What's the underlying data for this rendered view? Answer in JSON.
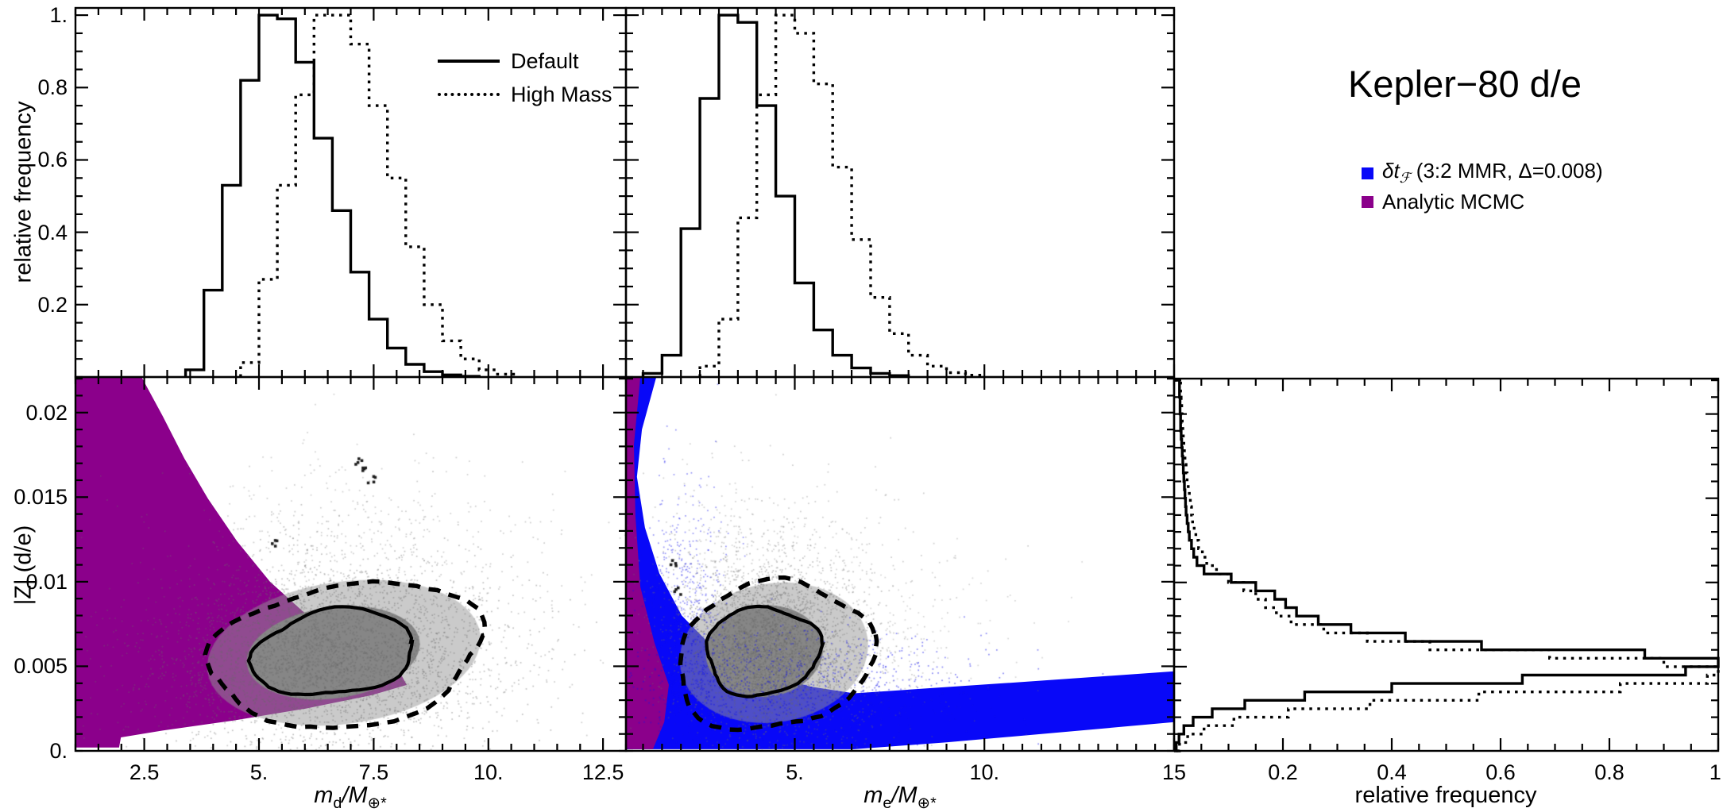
{
  "title": "Kepler−80 d/e",
  "colors": {
    "blue": "#0808F8",
    "purple": "#8B008B",
    "gray_core": "#868686",
    "gray_mid": "#969696",
    "frame": "#000000"
  },
  "line_legend": {
    "default_label": "Default",
    "high_mass_label": "High Mass"
  },
  "region_legend": {
    "item1": {
      "prefix": "δt",
      "sub": "ℱ",
      "rest": " (3:2 MMR, Δ=0.008)",
      "color": "#0808F8"
    },
    "item2": {
      "label": "Analytic MCMC",
      "color": "#8B008B"
    }
  },
  "axis_labels": {
    "top_y": "relative frequency",
    "bottom_y": "|Z| (d/e)",
    "bottom_right_x": "relative frequency",
    "md": {
      "base": "m",
      "sub": "d",
      "mid": "/M",
      "sub2": "⊕*"
    },
    "me": {
      "base": "m",
      "sub": "e",
      "mid": "/M",
      "sub2": "⊕*"
    }
  },
  "chart_data": [
    {
      "id": "md_hist",
      "type": "histogram-step",
      "orientation": "vertical",
      "xlabel": "m_d/M_earth*",
      "ylabel": "relative frequency",
      "xlim": [
        1,
        13
      ],
      "ylim": [
        0,
        1.02
      ],
      "x_minor_step": 0.5,
      "x_major_ticks": [
        2.5,
        5,
        7.5,
        10,
        12.5
      ],
      "y_minor_step": 0.05,
      "y_major_ticks": [
        0.2,
        0.4,
        0.6,
        0.8,
        1
      ],
      "y_tick_labels": [
        "0.2",
        "0.4",
        "0.6",
        "0.8",
        "1."
      ],
      "series": [
        {
          "name": "Default",
          "style": "solid",
          "bin_start": 3.4,
          "bin_width": 0.4,
          "values": [
            0.02,
            0.24,
            0.53,
            0.82,
            1.0,
            0.99,
            0.87,
            0.66,
            0.46,
            0.29,
            0.16,
            0.08,
            0.035,
            0.015,
            0.006,
            0.002
          ]
        },
        {
          "name": "High Mass",
          "style": "dotted",
          "bin_start": 4.6,
          "bin_width": 0.4,
          "values": [
            0.04,
            0.27,
            0.53,
            0.78,
            1.0,
            1.0,
            0.92,
            0.75,
            0.55,
            0.36,
            0.2,
            0.1,
            0.05,
            0.02,
            0.008
          ]
        }
      ]
    },
    {
      "id": "me_hist",
      "type": "histogram-step",
      "orientation": "vertical",
      "xlabel": "m_e/M_earth*",
      "xlim": [
        0.55,
        15
      ],
      "ylim": [
        0,
        1.02
      ],
      "x_minor_step": 0.5,
      "x_major_ticks": [
        5,
        10,
        15
      ],
      "y_minor_step": 0.05,
      "y_major_ticks": [
        0.2,
        0.4,
        0.6,
        0.8,
        1
      ],
      "series": [
        {
          "name": "Default",
          "style": "solid",
          "bin_start": 1.0,
          "bin_width": 0.5,
          "values": [
            0.01,
            0.06,
            0.41,
            0.77,
            1.0,
            0.98,
            0.75,
            0.5,
            0.26,
            0.13,
            0.06,
            0.025,
            0.01,
            0.004
          ]
        },
        {
          "name": "High Mass",
          "style": "dotted",
          "bin_start": 2.5,
          "bin_width": 0.5,
          "values": [
            0.03,
            0.16,
            0.44,
            0.78,
            1.0,
            0.95,
            0.81,
            0.58,
            0.38,
            0.22,
            0.12,
            0.06,
            0.03,
            0.012,
            0.005
          ]
        }
      ]
    },
    {
      "id": "md_scatter",
      "type": "scatter",
      "xlabel": "m_d/M_earth*",
      "ylabel": "|Z| (d/e)",
      "xlim": [
        1,
        13
      ],
      "ylim": [
        0,
        0.0221
      ],
      "x_minor_step": 0.5,
      "x_major_ticks": [
        2.5,
        5,
        7.5,
        10,
        12.5
      ],
      "x_tick_labels": [
        "2.5",
        "5.",
        "7.5",
        "10.",
        "12.5"
      ],
      "y_minor_step": 0.001,
      "y_major_ticks": [
        0.005,
        0.01,
        0.015,
        0.02
      ],
      "y_tick_labels": [
        "0.005",
        "0.01",
        "0.015",
        "0.02"
      ],
      "y_zero_label": "0.",
      "regions": [
        {
          "name": "Analytic MCMC",
          "color": "#8B008B",
          "polygon": [
            [
              1,
              0.0221
            ],
            [
              2.44,
              0.0221
            ],
            [
              2.9,
              0.0198
            ],
            [
              3.37,
              0.0173
            ],
            [
              3.89,
              0.0149
            ],
            [
              4.52,
              0.0124
            ],
            [
              5.24,
              0.01
            ],
            [
              6.14,
              0.0078
            ],
            [
              7.11,
              0.006
            ],
            [
              8.1,
              0.0045
            ],
            [
              8.22,
              0.0039
            ],
            [
              7.46,
              0.0033
            ],
            [
              6.02,
              0.0025
            ],
            [
              4.46,
              0.0018
            ],
            [
              2.9,
              0.0012
            ],
            [
              1.99,
              0.0008
            ],
            [
              1.95,
              0.0002
            ],
            [
              1,
              0.0002
            ]
          ]
        }
      ],
      "contours": {
        "solid": {
          "cx": 6.62,
          "cy": 0.0058,
          "rx": 1.78,
          "ry": 0.0025,
          "rot": -8
        },
        "dashed": {
          "cx": 6.92,
          "cy": 0.0057,
          "rx": 2.98,
          "ry": 0.0042,
          "rot": -8
        }
      },
      "cloud": {
        "fills": [
          {
            "cx": 6.85,
            "cy": 0.0058,
            "rx": 3.0,
            "ry": 0.0042,
            "rot": -8,
            "fill": "rgba(150,150,150,0.5)"
          },
          {
            "cx": 6.62,
            "cy": 0.0058,
            "rx": 1.9,
            "ry": 0.0027,
            "rot": -8,
            "fill": "rgba(134,134,134,1)"
          }
        ],
        "speckles": [
          {
            "cx": 6.7,
            "cy": 0.0058,
            "sx": 1.75,
            "sy": 0.0026,
            "n": 2800,
            "color": "rgba(105,105,105,0.42)"
          },
          {
            "cx": 6.9,
            "cy": 0.0078,
            "sx": 2.5,
            "sy": 0.0038,
            "n": 900,
            "color": "rgba(110,110,110,0.35)"
          },
          {
            "cx": 6.6,
            "cy": 0.0125,
            "sx": 1.7,
            "sy": 0.003,
            "n": 230,
            "color": "rgba(120,120,120,0.35)"
          },
          {
            "cx": 4.5,
            "cy": 0.004,
            "sx": 1.6,
            "sy": 0.002,
            "n": 350,
            "color": "rgba(110,110,110,0.35)"
          }
        ],
        "accent_dots": [
          [
            7.25,
            0.0167
          ],
          [
            7.42,
            0.0161
          ],
          [
            7.15,
            0.0172
          ],
          [
            5.3,
            0.0124
          ]
        ]
      }
    },
    {
      "id": "me_scatter",
      "type": "scatter",
      "xlabel": "m_e/M_earth*",
      "xlim": [
        0.55,
        15
      ],
      "ylim": [
        0,
        0.0221
      ],
      "x_minor_step": 0.5,
      "x_major_ticks": [
        5,
        10,
        15
      ],
      "x_tick_labels": [
        "5.",
        "10.",
        "15"
      ],
      "y_minor_step": 0.001,
      "y_major_ticks": [
        0.005,
        0.01,
        0.015,
        0.02
      ],
      "regions": [
        {
          "name": "delta-t-F (3:2 MMR)",
          "color": "#0808F8",
          "polygon": [
            [
              0.55,
              0.0221
            ],
            [
              1.35,
              0.0221
            ],
            [
              0.97,
              0.019
            ],
            [
              0.84,
              0.0162
            ],
            [
              1.05,
              0.0132
            ],
            [
              1.43,
              0.0105
            ],
            [
              2.02,
              0.008
            ],
            [
              2.85,
              0.0061
            ],
            [
              3.94,
              0.0047
            ],
            [
              5.41,
              0.0038
            ],
            [
              6.56,
              0.0034
            ],
            [
              10.5,
              0.004
            ],
            [
              15,
              0.0047
            ],
            [
              15,
              0.0017
            ],
            [
              12,
              0.0011
            ],
            [
              9,
              0.0005
            ],
            [
              6.56,
              0.0001
            ],
            [
              0.55,
              0.0001
            ]
          ]
        },
        {
          "name": "Analytic MCMC",
          "color": "#8B008B",
          "polygon": [
            [
              0.55,
              0.0221
            ],
            [
              0.93,
              0.0221
            ],
            [
              0.76,
              0.0181
            ],
            [
              0.8,
              0.0139
            ],
            [
              0.93,
              0.0097
            ],
            [
              1.3,
              0.0064
            ],
            [
              1.68,
              0.0039
            ],
            [
              1.56,
              0.0017
            ],
            [
              1.26,
              0.0001
            ],
            [
              0.55,
              0.0001
            ]
          ]
        }
      ],
      "contours": {
        "solid": {
          "cx": 4.15,
          "cy": 0.0059,
          "rx": 1.5,
          "ry": 0.0026,
          "rot": -6
        },
        "dashed": {
          "cx": 4.45,
          "cy": 0.0056,
          "rx": 2.6,
          "ry": 0.0043,
          "rot": -12
        }
      },
      "cloud": {
        "fills": [
          {
            "cx": 4.45,
            "cy": 0.0058,
            "rx": 2.5,
            "ry": 0.0041,
            "rot": -10,
            "fill": "rgba(150,150,150,0.5)"
          },
          {
            "cx": 4.2,
            "cy": 0.0059,
            "rx": 1.55,
            "ry": 0.0027,
            "rot": -6,
            "fill": "rgba(134,134,134,1)"
          }
        ],
        "speckles": [
          {
            "cx": 4.3,
            "cy": 0.006,
            "sx": 1.1,
            "sy": 0.0024,
            "n": 2600,
            "color": "rgba(105,105,105,0.42)"
          },
          {
            "cx": 4.8,
            "cy": 0.008,
            "sx": 1.9,
            "sy": 0.0036,
            "n": 900,
            "color": "rgba(110,110,110,0.35)"
          },
          {
            "cx": 6.5,
            "cy": 0.0068,
            "sx": 2.2,
            "sy": 0.0022,
            "n": 250,
            "color": "rgba(120,120,120,0.3)"
          },
          {
            "cx": 3.6,
            "cy": 0.0115,
            "sx": 1.0,
            "sy": 0.0028,
            "n": 220,
            "color": "rgba(120,120,120,0.35)"
          },
          {
            "cx": 5.6,
            "cy": 0.0038,
            "sx": 2.3,
            "sy": 0.0016,
            "n": 700,
            "color": "rgba(18,18,235,0.5)"
          },
          {
            "cx": 2.1,
            "cy": 0.0085,
            "sx": 0.55,
            "sy": 0.0038,
            "n": 450,
            "color": "rgba(18,18,235,0.45)"
          },
          {
            "cx": 3.2,
            "cy": 0.0045,
            "sx": 1.1,
            "sy": 0.002,
            "n": 350,
            "color": "rgba(18,18,235,0.4)"
          }
        ],
        "accent_dots": [
          [
            1.9,
            0.0095
          ],
          [
            1.8,
            0.0112
          ]
        ]
      }
    },
    {
      "id": "z_hist",
      "type": "histogram-step",
      "orientation": "horizontal",
      "xlabel": "relative frequency",
      "xlim": [
        0,
        1
      ],
      "x_minor_step": 0.05,
      "x_major_ticks": [
        0.2,
        0.4,
        0.6,
        0.8,
        1
      ],
      "x_tick_labels": [
        "0.2",
        "0.4",
        "0.6",
        "0.8",
        "1."
      ],
      "ylim": [
        0,
        0.0221
      ],
      "y_minor_step": 0.001,
      "y_major_ticks": [
        0.005,
        0.01,
        0.015,
        0.02
      ],
      "series": [
        {
          "name": "Default",
          "style": "solid",
          "bin_start": 0.022,
          "bin_width": 0.0005,
          "values": [
            0.01,
            0.01,
            0.011,
            0.011,
            0.012,
            0.012,
            0.013,
            0.014,
            0.015,
            0.016,
            0.017,
            0.018,
            0.019,
            0.02,
            0.021,
            0.022,
            0.024,
            0.026,
            0.028,
            0.032,
            0.036,
            0.042,
            0.055,
            0.105,
            0.15,
            0.185,
            0.205,
            0.225,
            0.265,
            0.325,
            0.425,
            0.565,
            0.865,
            1.0,
            0.94,
            0.64,
            0.4,
            0.24,
            0.13,
            0.07,
            0.035,
            0.018,
            0.009,
            0.004
          ]
        },
        {
          "name": "High Mass",
          "style": "dotted",
          "bin_start": 0.022,
          "bin_width": 0.0005,
          "values": [
            0.012,
            0.012,
            0.013,
            0.014,
            0.015,
            0.016,
            0.017,
            0.018,
            0.019,
            0.02,
            0.022,
            0.024,
            0.026,
            0.028,
            0.03,
            0.032,
            0.034,
            0.037,
            0.04,
            0.045,
            0.052,
            0.06,
            0.078,
            0.1,
            0.128,
            0.15,
            0.168,
            0.188,
            0.215,
            0.275,
            0.355,
            0.47,
            0.69,
            0.9,
            1.0,
            0.98,
            0.82,
            0.56,
            0.36,
            0.21,
            0.11,
            0.055,
            0.025,
            0.01
          ]
        }
      ]
    }
  ]
}
